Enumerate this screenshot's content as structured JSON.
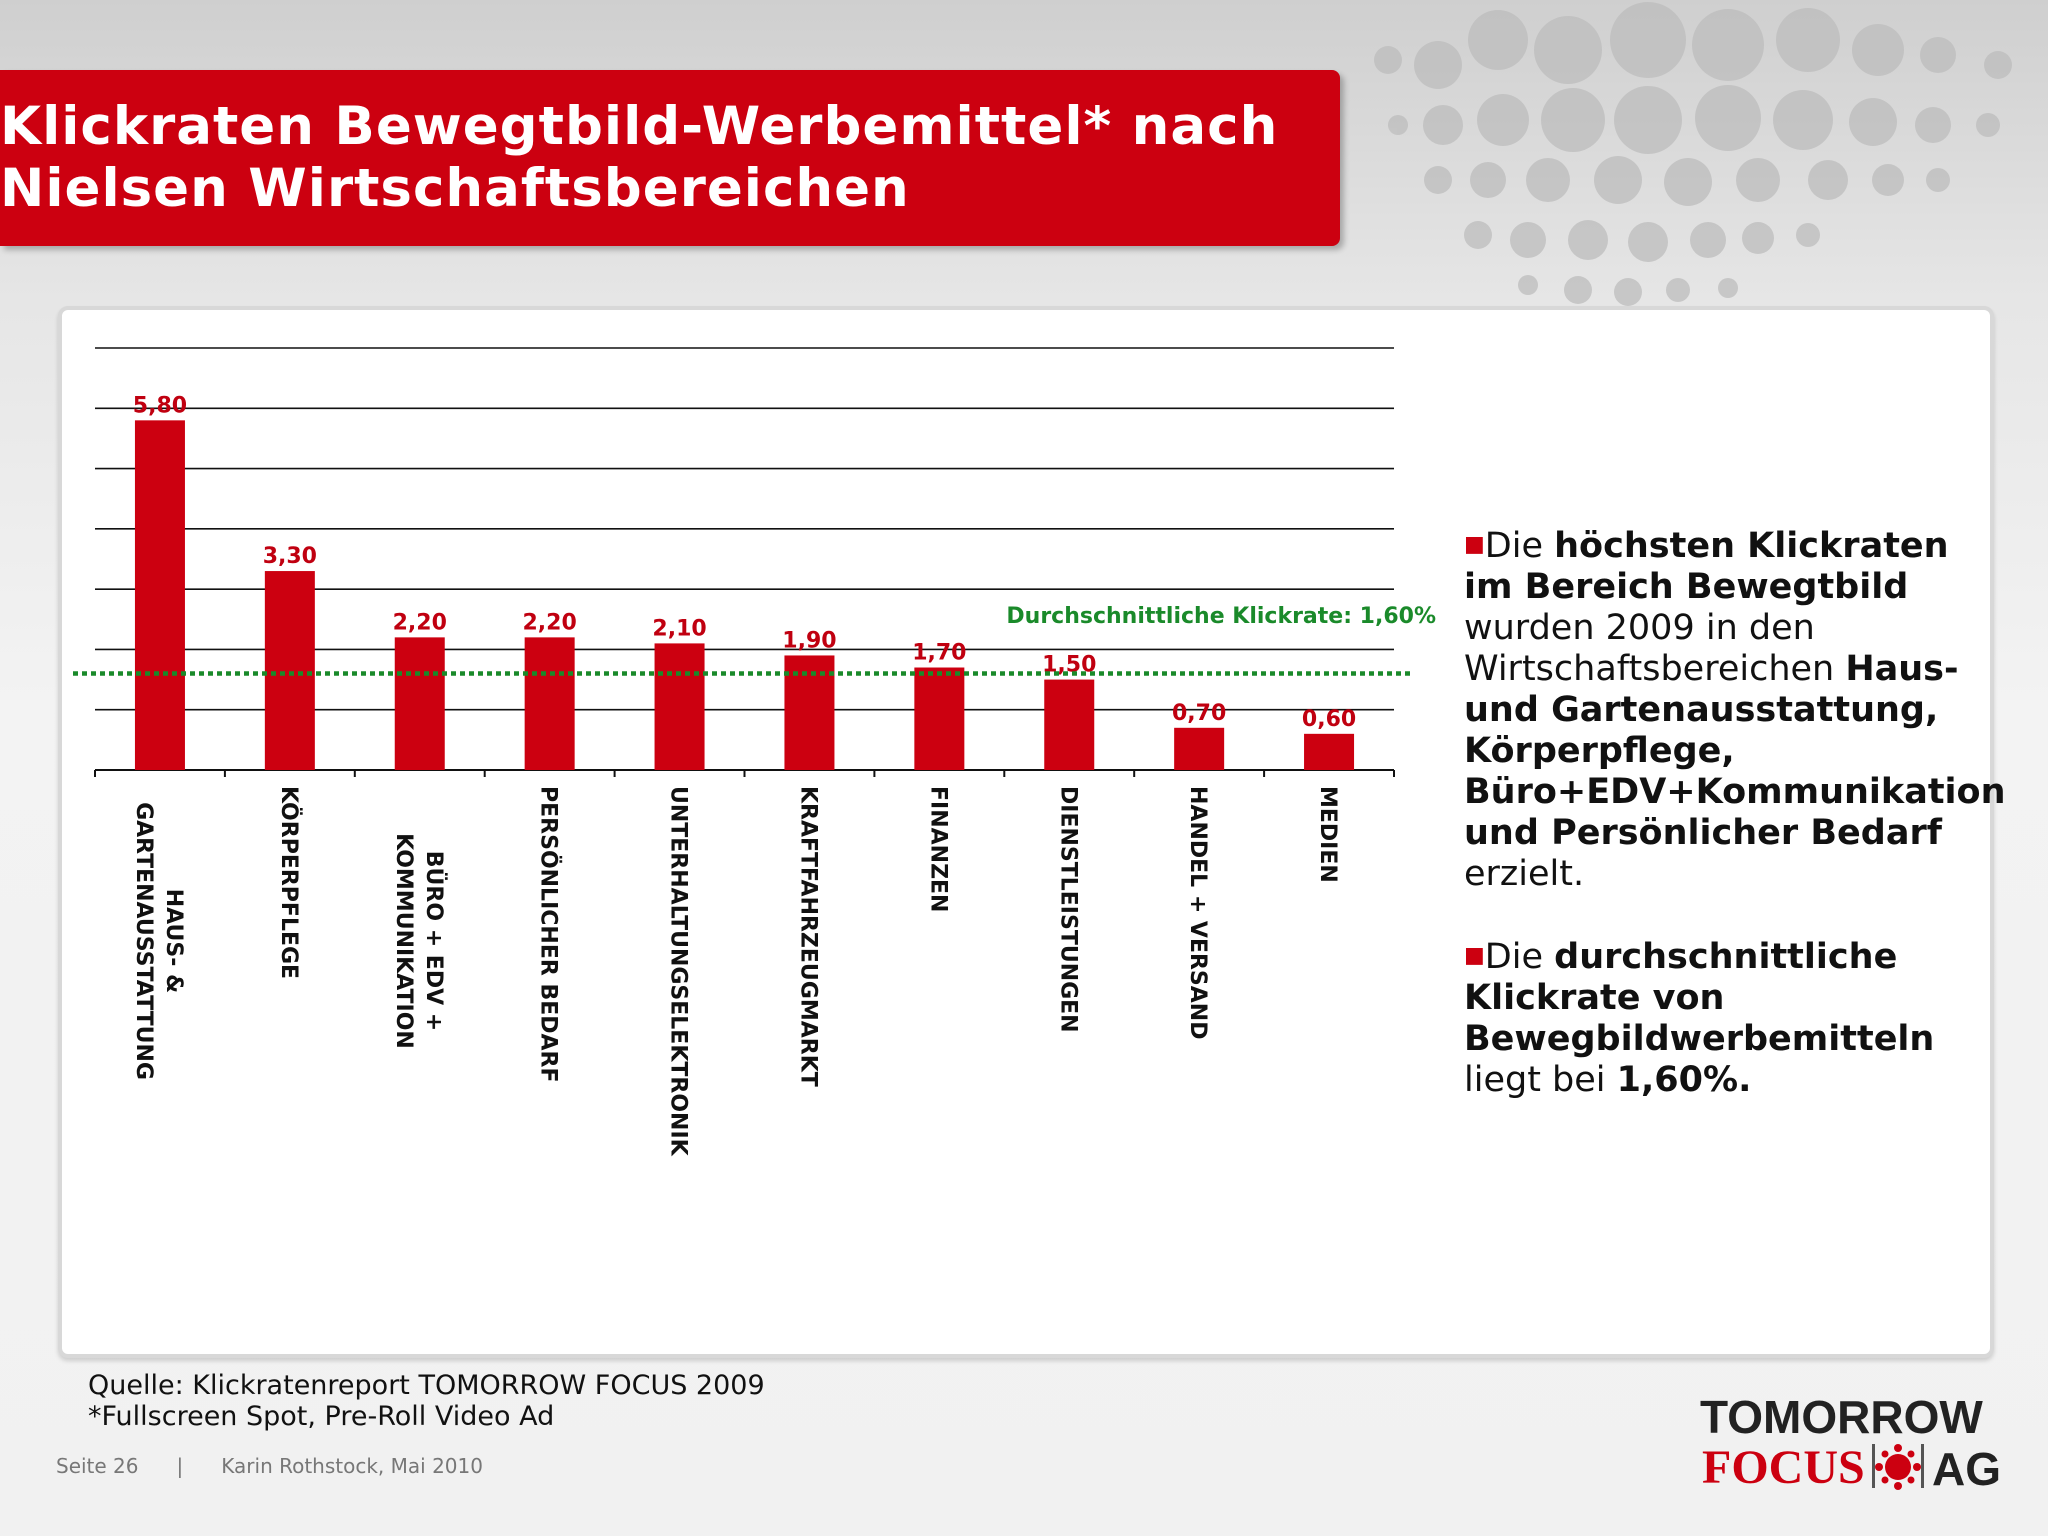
{
  "title": "Klickraten Bewegtbild-Werbemittel* nach Nielsen Wirtschaftsbereichen",
  "chart_data": {
    "type": "bar",
    "categories": [
      "HAUS- & GARTENAUSSTATTUNG",
      "KÖRPERPFLEGE",
      "BÜRO + EDV + KOMMUNIKATION",
      "PERSÖNLICHER BEDARF",
      "UNTERHALTUNGSELEKTRONIK",
      "KRAFTFAHRZEUGMARKT",
      "FINANZEN",
      "DIENSTLEISTUNGEN",
      "HANDEL + VERSAND",
      "MEDIEN"
    ],
    "category_lines": [
      [
        "HAUS- &",
        "GARTENAUSSTATTUNG"
      ],
      [
        "KÖRPERPFLEGE"
      ],
      [
        "BÜRO + EDV +",
        "KOMMUNIKATION"
      ],
      [
        "PERSÖNLICHER BEDARF"
      ],
      [
        "UNTERHALTUNGSELEKTRONIK"
      ],
      [
        "KRAFTFAHRZEUGMARKT"
      ],
      [
        "FINANZEN"
      ],
      [
        "DIENSTLEISTUNGEN"
      ],
      [
        "HANDEL + VERSAND"
      ],
      [
        "MEDIEN"
      ]
    ],
    "values": [
      5.8,
      3.3,
      2.2,
      2.2,
      2.1,
      1.9,
      1.7,
      1.5,
      0.7,
      0.6
    ],
    "value_labels": [
      "5,80",
      "3,30",
      "2,20",
      "2,20",
      "2,10",
      "1,90",
      "1,70",
      "1,50",
      "0,70",
      "0,60"
    ],
    "average": 1.6,
    "average_label": "Durchschnittliche Klickrate: 1,60%",
    "ylim": [
      0,
      7
    ],
    "grid": true,
    "bar_color": "#cc0010",
    "average_color": "#1a8a2a",
    "label_color": "#c00010"
  },
  "side_text": {
    "p1": {
      "a": "Die ",
      "b": "höchsten Klickraten im Bereich Bewegtbild",
      "c": " wurden 2009 in den Wirtschaftsbereichen ",
      "d": "Haus- und Gartenausstattung, Körperpflege, Büro+EDV+Kommunikation und Persönlicher Bedarf",
      "e": " erzielt."
    },
    "p2": {
      "a": "Die ",
      "b": "durchschnittliche Klickrate von Bewegbildwerbemitteln",
      "c": " liegt bei ",
      "d": "1,60%."
    }
  },
  "source": {
    "line1": "Quelle: Klickratenreport TOMORROW FOCUS 2009",
    "line2": "*Fullscreen Spot, Pre-Roll Video Ad"
  },
  "footer": {
    "page": "Seite 26",
    "separator": "|",
    "author": "Karin Rothstock, Mai 2010"
  },
  "logo": {
    "top": "TOMORROW",
    "bottom": "FOCUS",
    "suffix": "AG"
  }
}
